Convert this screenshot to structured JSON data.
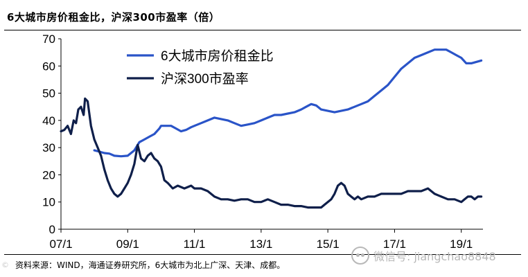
{
  "header": {
    "title": "6大城市房价租金比，沪深300市盈率（倍）"
  },
  "footer": {
    "source": "资料来源：WIND，海通证券研究所，6大城市为北上广深、天津、成都。",
    "watermark": "微信号: jiangchao8848",
    "watermark_prefix": "©"
  },
  "chart_data": {
    "type": "line",
    "title": "6大城市房价租金比，沪深300市盈率（倍）",
    "xlabel": "",
    "ylabel": "",
    "xlim": [
      2007.0,
      2019.65
    ],
    "ylim": [
      0,
      70
    ],
    "yticks": [
      0,
      10,
      20,
      30,
      40,
      50,
      60,
      70
    ],
    "xticks": [
      {
        "label": "07/1",
        "value": 2007.0
      },
      {
        "label": "09/1",
        "value": 2009.0
      },
      {
        "label": "11/1",
        "value": 2011.0
      },
      {
        "label": "13/1",
        "value": 2013.0
      },
      {
        "label": "15/1",
        "value": 2015.0
      },
      {
        "label": "17/1",
        "value": 2017.0
      },
      {
        "label": "19/1",
        "value": 2019.0
      }
    ],
    "legend_position": "top-center",
    "series": [
      {
        "name": "6大城市房价租金比",
        "color": "#2A54C8",
        "x": [
          2008.0,
          2008.15,
          2008.3,
          2008.45,
          2008.6,
          2008.8,
          2009.0,
          2009.2,
          2009.35,
          2009.5,
          2009.65,
          2009.8,
          2009.95,
          2010.0,
          2010.15,
          2010.3,
          2010.45,
          2010.6,
          2010.75,
          2010.9,
          2011.0,
          2011.2,
          2011.4,
          2011.6,
          2011.8,
          2012.0,
          2012.2,
          2012.4,
          2012.6,
          2012.8,
          2013.0,
          2013.2,
          2013.4,
          2013.6,
          2013.8,
          2014.0,
          2014.2,
          2014.35,
          2014.5,
          2014.65,
          2014.8,
          2015.0,
          2015.2,
          2015.4,
          2015.6,
          2015.8,
          2016.0,
          2016.2,
          2016.4,
          2016.6,
          2016.8,
          2017.0,
          2017.2,
          2017.4,
          2017.6,
          2017.8,
          2018.0,
          2018.2,
          2018.4,
          2018.55,
          2018.7,
          2018.85,
          2019.0,
          2019.15,
          2019.3,
          2019.45,
          2019.6
        ],
        "values": [
          29,
          28.5,
          28,
          27.8,
          27,
          26.8,
          27,
          29,
          32,
          33,
          34,
          35,
          37,
          38,
          38,
          38,
          37,
          36,
          36.5,
          37.5,
          38,
          39,
          40,
          41,
          40.5,
          40,
          39,
          38,
          38.5,
          39,
          40,
          41,
          42,
          42,
          42.5,
          43,
          44,
          45,
          46,
          45.5,
          44,
          43.5,
          43,
          43.5,
          44,
          45,
          46,
          47,
          49,
          51,
          53,
          56,
          59,
          61,
          63,
          64,
          65,
          66,
          66,
          66,
          65,
          64,
          63,
          61,
          61,
          61.5,
          62
        ]
      },
      {
        "name": "沪深300市盈率",
        "color": "#0F1F4A",
        "x": [
          2007.0,
          2007.1,
          2007.2,
          2007.3,
          2007.38,
          2007.45,
          2007.52,
          2007.6,
          2007.68,
          2007.72,
          2007.8,
          2007.9,
          2008.0,
          2008.1,
          2008.2,
          2008.3,
          2008.4,
          2008.5,
          2008.6,
          2008.7,
          2008.8,
          2008.9,
          2009.0,
          2009.1,
          2009.2,
          2009.3,
          2009.4,
          2009.5,
          2009.6,
          2009.7,
          2009.8,
          2009.9,
          2010.0,
          2010.1,
          2010.2,
          2010.35,
          2010.5,
          2010.7,
          2010.9,
          2011.0,
          2011.2,
          2011.4,
          2011.6,
          2011.8,
          2012.0,
          2012.2,
          2012.4,
          2012.6,
          2012.8,
          2013.0,
          2013.2,
          2013.4,
          2013.6,
          2013.8,
          2014.0,
          2014.2,
          2014.4,
          2014.6,
          2014.8,
          2014.9,
          2015.0,
          2015.1,
          2015.2,
          2015.3,
          2015.4,
          2015.5,
          2015.6,
          2015.7,
          2015.8,
          2015.9,
          2016.0,
          2016.2,
          2016.4,
          2016.6,
          2016.8,
          2017.0,
          2017.2,
          2017.4,
          2017.6,
          2017.8,
          2018.0,
          2018.1,
          2018.2,
          2018.4,
          2018.6,
          2018.8,
          2019.0,
          2019.1,
          2019.2,
          2019.3,
          2019.4,
          2019.5,
          2019.6
        ],
        "values": [
          36,
          36.5,
          38,
          35,
          40,
          39,
          44,
          45,
          42,
          48,
          47,
          38,
          33,
          30,
          27,
          22,
          18,
          15,
          13,
          12,
          13,
          15,
          17,
          20,
          24,
          31,
          26,
          25,
          27,
          28,
          26,
          25,
          23,
          18,
          17,
          15,
          16,
          15,
          16,
          15,
          15,
          14,
          12,
          11,
          11,
          10.5,
          11,
          11,
          10,
          10,
          11,
          10,
          9,
          9,
          8.5,
          8.5,
          8,
          8,
          8,
          9,
          10,
          11,
          13,
          16,
          17,
          16,
          13,
          12,
          11,
          12,
          11,
          12,
          12,
          13,
          13,
          13,
          13,
          14,
          14,
          14,
          15,
          14,
          13,
          12,
          11,
          11,
          10,
          11,
          12,
          12,
          11,
          12,
          12
        ]
      }
    ]
  }
}
